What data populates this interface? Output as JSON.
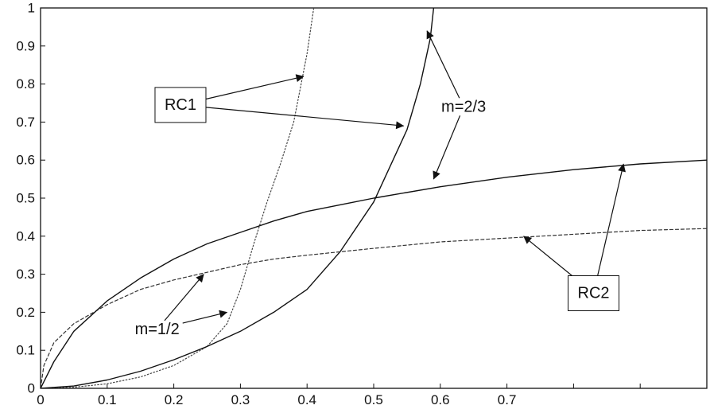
{
  "chart_data": {
    "type": "line",
    "title": "",
    "xlabel": "",
    "ylabel": "",
    "xlim": [
      0,
      1
    ],
    "ylim": [
      0,
      1
    ],
    "x_ticks": [
      0,
      0.1,
      0.2,
      0.3,
      0.4,
      0.5,
      0.6,
      0.7,
      0.8,
      0.9,
      1.0
    ],
    "x_tick_labels": [
      "0",
      "0.1",
      "0.2",
      "0.3",
      "0.4",
      "0.5",
      "0.6",
      "0.7",
      "",
      "",
      ""
    ],
    "y_ticks": [
      0,
      0.1,
      0.2,
      0.3,
      0.4,
      0.5,
      0.6,
      0.7,
      0.8,
      0.9,
      1
    ],
    "y_tick_labels": [
      "0",
      "0.1",
      "0.2",
      "0.3",
      "0.4",
      "0.5",
      "0.6",
      "0.7",
      "0.8",
      "0.9",
      "1"
    ],
    "grid": false,
    "series": [
      {
        "group": "RC1",
        "m": "1/2",
        "stroke": "#444444",
        "dash": "dotted",
        "points": [
          [
            0,
            0
          ],
          [
            0.05,
            0.003
          ],
          [
            0.1,
            0.012
          ],
          [
            0.15,
            0.03
          ],
          [
            0.2,
            0.06
          ],
          [
            0.25,
            0.11
          ],
          [
            0.28,
            0.17
          ],
          [
            0.3,
            0.26
          ],
          [
            0.32,
            0.38
          ],
          [
            0.34,
            0.49
          ],
          [
            0.36,
            0.59
          ],
          [
            0.38,
            0.7
          ],
          [
            0.39,
            0.79
          ],
          [
            0.4,
            0.88
          ],
          [
            0.41,
            1.0
          ]
        ]
      },
      {
        "group": "RC1",
        "m": "2/3",
        "stroke": "#111111",
        "dash": "solid",
        "points": [
          [
            0,
            0
          ],
          [
            0.05,
            0.006
          ],
          [
            0.1,
            0.022
          ],
          [
            0.15,
            0.045
          ],
          [
            0.2,
            0.075
          ],
          [
            0.25,
            0.11
          ],
          [
            0.3,
            0.15
          ],
          [
            0.35,
            0.2
          ],
          [
            0.4,
            0.26
          ],
          [
            0.45,
            0.36
          ],
          [
            0.5,
            0.49
          ],
          [
            0.55,
            0.68
          ],
          [
            0.57,
            0.8
          ],
          [
            0.585,
            0.92
          ],
          [
            0.59,
            1.0
          ]
        ]
      },
      {
        "group": "RC2",
        "m": "1/2",
        "stroke": "#333333",
        "dash": "dashed",
        "points": [
          [
            0,
            0
          ],
          [
            0.005,
            0.06
          ],
          [
            0.02,
            0.12
          ],
          [
            0.05,
            0.17
          ],
          [
            0.1,
            0.22
          ],
          [
            0.15,
            0.26
          ],
          [
            0.2,
            0.285
          ],
          [
            0.25,
            0.305
          ],
          [
            0.3,
            0.325
          ],
          [
            0.35,
            0.34
          ],
          [
            0.4,
            0.35
          ],
          [
            0.5,
            0.368
          ],
          [
            0.6,
            0.385
          ],
          [
            0.7,
            0.395
          ],
          [
            0.8,
            0.405
          ],
          [
            0.9,
            0.415
          ],
          [
            1.0,
            0.42
          ]
        ]
      },
      {
        "group": "RC2",
        "m": "2/3",
        "stroke": "#111111",
        "dash": "solid",
        "points": [
          [
            0,
            0
          ],
          [
            0.02,
            0.07
          ],
          [
            0.05,
            0.15
          ],
          [
            0.1,
            0.23
          ],
          [
            0.15,
            0.29
          ],
          [
            0.2,
            0.34
          ],
          [
            0.25,
            0.38
          ],
          [
            0.3,
            0.41
          ],
          [
            0.35,
            0.44
          ],
          [
            0.4,
            0.465
          ],
          [
            0.5,
            0.5
          ],
          [
            0.6,
            0.53
          ],
          [
            0.7,
            0.555
          ],
          [
            0.8,
            0.575
          ],
          [
            0.9,
            0.59
          ],
          [
            1.0,
            0.6
          ]
        ]
      }
    ],
    "annotations": [
      {
        "label": "RC1",
        "label_at": [
          0.21,
          0.745
        ],
        "targets": [
          [
            0.395,
            0.82
          ],
          [
            0.545,
            0.69
          ]
        ]
      },
      {
        "label": "m=2/3",
        "label_at": [
          0.635,
          0.74
        ],
        "targets": [
          [
            0.58,
            0.94
          ],
          [
            0.59,
            0.55
          ]
        ]
      },
      {
        "label": "RC2",
        "label_at": [
          0.83,
          0.25
        ],
        "targets": [
          [
            0.875,
            0.59
          ],
          [
            0.725,
            0.4
          ]
        ]
      },
      {
        "label": "m=1/2",
        "label_at": [
          0.175,
          0.155
        ],
        "targets": [
          [
            0.28,
            0.2
          ],
          [
            0.245,
            0.3
          ]
        ]
      }
    ]
  }
}
